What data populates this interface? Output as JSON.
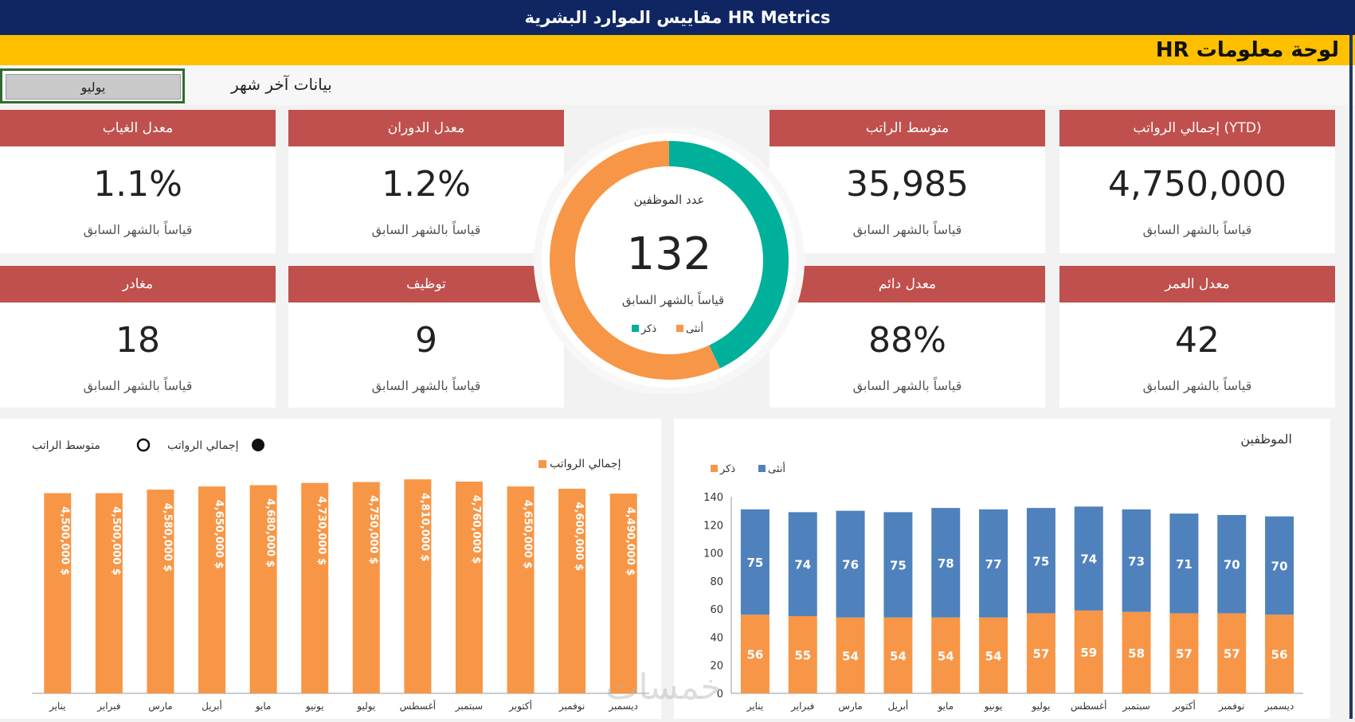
{
  "title": "مقاييس الموارد البشرية HR Metrics",
  "dashboard_label": "لوحة معلومات HR",
  "controls": {
    "selected_month": "يوليو",
    "last_month_label": "بيانات آخر شهر"
  },
  "compare_text": "قياساً بالشهر السابق",
  "cards_top": [
    {
      "title": "إجمالي الرواتب (YTD)",
      "value": "4,750,000"
    },
    {
      "title": "متوسط الراتب",
      "value": "35,985"
    },
    {
      "title": "معدل الدوران",
      "value": "1.2%"
    },
    {
      "title": "معدل الغياب",
      "value": "1.1%"
    }
  ],
  "cards_bottom": [
    {
      "title": "معدل العمر",
      "value": "42"
    },
    {
      "title": "معدل دائم",
      "value": "88%"
    },
    {
      "title": "توظيف",
      "value": "9"
    },
    {
      "title": "مغادر",
      "value": "18"
    }
  ],
  "donut": {
    "title": "عدد الموظفين",
    "value": "132",
    "subtitle": "قياساً بالشهر السابق",
    "legend_male": "ذكر",
    "legend_female": "أنثى",
    "male_fraction": 0.43,
    "colors": {
      "male": "#00b09b",
      "female": "#f79646"
    }
  },
  "salary_chart": {
    "legend_avg": "متوسط الراتب",
    "legend_total_icon": "إجمالي الرواتب",
    "legend_series": "إجمالي الرواتب",
    "color": "#f79646"
  },
  "employees_chart": {
    "title": "الموظفين",
    "legend_female": "أنثى",
    "legend_male": "ذكر",
    "color_female": "#4f81bd",
    "color_male": "#f79646"
  },
  "watermark": "خمسات",
  "chart_data": [
    {
      "type": "bar",
      "title": "",
      "categories": [
        "يناير",
        "فبراير",
        "مارس",
        "أبريل",
        "مايو",
        "يونيو",
        "يوليو",
        "أغسطس",
        "سبتمبر",
        "أكتوبر",
        "نوفمبر",
        "ديسمبر"
      ],
      "series": [
        {
          "name": "إجمالي الرواتب",
          "values": [
            4500000,
            4500000,
            4580000,
            4650000,
            4680000,
            4730000,
            4750000,
            4810000,
            4760000,
            4650000,
            4600000,
            4490000
          ]
        }
      ],
      "labels": [
        "4,500,000 $",
        "4,500,000 $",
        "4,580,000 $",
        "4,650,000 $",
        "4,680,000 $",
        "4,730,000 $",
        "4,750,000 $",
        "4,810,000 $",
        "4,760,000 $",
        "4,650,000 $",
        "4,600,000 $",
        "4,490,000 $"
      ],
      "ylim": [
        0,
        5100000
      ],
      "grid": false
    },
    {
      "type": "bar",
      "stacked": true,
      "title": "الموظفين",
      "categories": [
        "يناير",
        "فبراير",
        "مارس",
        "أبريل",
        "مايو",
        "يونيو",
        "يوليو",
        "أغسطس",
        "سبتمبر",
        "أكتوبر",
        "نوفمبر",
        "ديسمبر"
      ],
      "series": [
        {
          "name": "ذكر",
          "values": [
            56,
            55,
            54,
            54,
            54,
            54,
            57,
            59,
            58,
            57,
            57,
            56
          ]
        },
        {
          "name": "أنثى",
          "values": [
            75,
            74,
            76,
            75,
            78,
            77,
            75,
            74,
            73,
            71,
            70,
            70
          ]
        }
      ],
      "yticks": [
        0,
        20,
        40,
        60,
        80,
        100,
        120,
        140
      ],
      "ylim": [
        0,
        140
      ],
      "grid": false,
      "legend": "top-left"
    }
  ]
}
